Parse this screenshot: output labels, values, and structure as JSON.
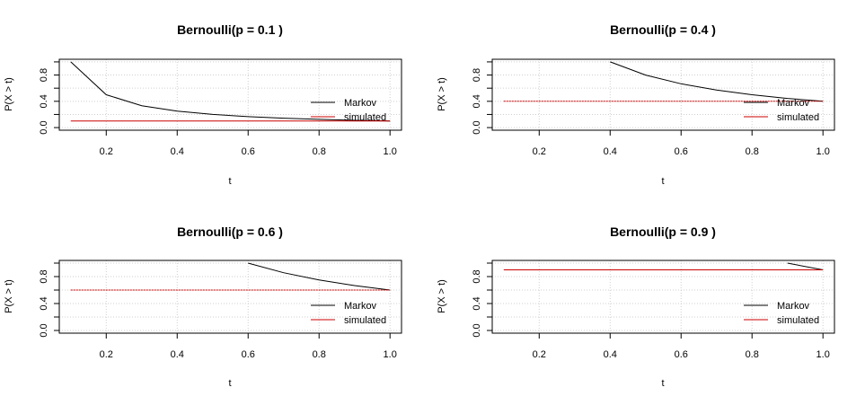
{
  "chart_data": [
    {
      "type": "line",
      "title": "Bernoulli(p = 0.1 )",
      "xlabel": "t",
      "ylabel": "P(X > t)",
      "xlim": [
        0.1,
        1.0
      ],
      "ylim": [
        0.0,
        1.0
      ],
      "x_ticks": [
        "0.2",
        "0.4",
        "0.6",
        "0.8",
        "1.0"
      ],
      "y_ticks": [
        "0.0",
        "0.4",
        "0.8"
      ],
      "grid": true,
      "legend_position": "bottom-right",
      "series": [
        {
          "name": "Markov",
          "color": "#000000",
          "dash": "solid",
          "x": [
            0.1,
            0.2,
            0.3,
            0.4,
            0.5,
            0.6,
            0.7,
            0.8,
            0.9,
            1.0
          ],
          "values": [
            1.0,
            0.5,
            0.333,
            0.25,
            0.2,
            0.167,
            0.143,
            0.125,
            0.111,
            0.1
          ]
        },
        {
          "name": "simulated",
          "color": "#cc0000",
          "dash": "solid",
          "x": [
            0.1,
            0.2,
            0.3,
            0.4,
            0.5,
            0.6,
            0.7,
            0.8,
            0.9,
            1.0
          ],
          "values": [
            0.1,
            0.1,
            0.1,
            0.1,
            0.1,
            0.1,
            0.1,
            0.1,
            0.1,
            0.1
          ]
        }
      ]
    },
    {
      "type": "line",
      "title": "Bernoulli(p = 0.4 )",
      "xlabel": "t",
      "ylabel": "P(X > t)",
      "xlim": [
        0.1,
        1.0
      ],
      "ylim": [
        0.0,
        1.0
      ],
      "x_ticks": [
        "0.2",
        "0.4",
        "0.6",
        "0.8",
        "1.0"
      ],
      "y_ticks": [
        "0.0",
        "0.4",
        "0.8"
      ],
      "grid": true,
      "legend_position": "bottom-right",
      "series": [
        {
          "name": "Markov",
          "color": "#000000",
          "dash": "solid",
          "x": [
            0.4,
            0.5,
            0.6,
            0.7,
            0.8,
            0.9,
            1.0
          ],
          "values": [
            1.0,
            0.8,
            0.667,
            0.571,
            0.5,
            0.444,
            0.4
          ]
        },
        {
          "name": "simulated",
          "color": "#cc0000",
          "dash": "dotted",
          "x": [
            0.1,
            0.2,
            0.3,
            0.4,
            0.5,
            0.6,
            0.7,
            0.8,
            0.9,
            1.0
          ],
          "values": [
            0.4,
            0.4,
            0.4,
            0.4,
            0.4,
            0.4,
            0.4,
            0.4,
            0.4,
            0.4
          ]
        }
      ]
    },
    {
      "type": "line",
      "title": "Bernoulli(p = 0.6 )",
      "xlabel": "t",
      "ylabel": "P(X > t)",
      "xlim": [
        0.1,
        1.0
      ],
      "ylim": [
        0.0,
        1.0
      ],
      "x_ticks": [
        "0.2",
        "0.4",
        "0.6",
        "0.8",
        "1.0"
      ],
      "y_ticks": [
        "0.0",
        "0.4",
        "0.8"
      ],
      "grid": true,
      "legend_position": "bottom-right",
      "series": [
        {
          "name": "Markov",
          "color": "#000000",
          "dash": "solid",
          "x": [
            0.6,
            0.7,
            0.8,
            0.9,
            1.0
          ],
          "values": [
            1.0,
            0.857,
            0.75,
            0.667,
            0.6
          ]
        },
        {
          "name": "simulated",
          "color": "#cc0000",
          "dash": "dotted",
          "x": [
            0.1,
            0.2,
            0.3,
            0.4,
            0.5,
            0.6,
            0.7,
            0.8,
            0.9,
            1.0
          ],
          "values": [
            0.6,
            0.6,
            0.6,
            0.6,
            0.6,
            0.6,
            0.6,
            0.6,
            0.6,
            0.6
          ]
        }
      ]
    },
    {
      "type": "line",
      "title": "Bernoulli(p = 0.9 )",
      "xlabel": "t",
      "ylabel": "P(X > t)",
      "xlim": [
        0.1,
        1.0
      ],
      "ylim": [
        0.0,
        1.0
      ],
      "x_ticks": [
        "0.2",
        "0.4",
        "0.6",
        "0.8",
        "1.0"
      ],
      "y_ticks": [
        "0.0",
        "0.4",
        "0.8"
      ],
      "grid": true,
      "legend_position": "bottom-right",
      "series": [
        {
          "name": "Markov",
          "color": "#000000",
          "dash": "solid",
          "x": [
            0.9,
            1.0
          ],
          "values": [
            1.0,
            0.9
          ]
        },
        {
          "name": "simulated",
          "color": "#cc0000",
          "dash": "solid",
          "x": [
            0.1,
            0.2,
            0.3,
            0.4,
            0.5,
            0.6,
            0.7,
            0.8,
            0.9,
            1.0
          ],
          "values": [
            0.9,
            0.9,
            0.9,
            0.9,
            0.9,
            0.9,
            0.9,
            0.9,
            0.9,
            0.9
          ]
        }
      ]
    }
  ]
}
